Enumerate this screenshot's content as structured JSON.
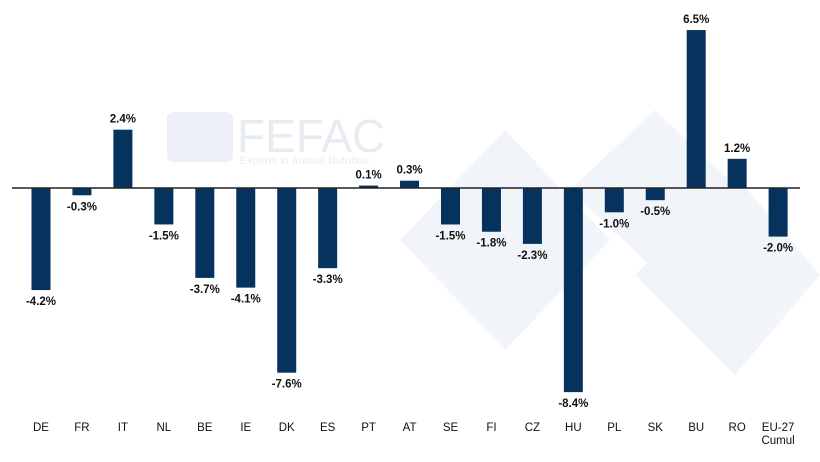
{
  "logo": {
    "name": "FEFAC",
    "tagline": "Experts in Animal Nutrition"
  },
  "chart_data": {
    "type": "bar",
    "categories": [
      "DE",
      "FR",
      "IT",
      "NL",
      "BE",
      "IE",
      "DK",
      "ES",
      "PT",
      "AT",
      "SE",
      "FI",
      "CZ",
      "HU",
      "PL",
      "SK",
      "BU",
      "RO",
      "EU-27 Cumul"
    ],
    "values": [
      -4.2,
      -0.3,
      2.4,
      -1.5,
      -3.7,
      -4.1,
      -7.6,
      -3.3,
      0.1,
      0.3,
      -1.5,
      -1.8,
      -2.3,
      -8.4,
      -1.0,
      -0.5,
      6.5,
      1.2,
      -2.0
    ],
    "data_labels": [
      "-4.2%",
      "-0.3%",
      "2.4%",
      "-1.5%",
      "-3.7%",
      "-4.1%",
      "-7.6%",
      "-3.3%",
      "0.1%",
      "0.3%",
      "-1.5%",
      "-1.8%",
      "-2.3%",
      "-8.4%",
      "-1.0%",
      "-0.5%",
      "6.5%",
      "1.2%",
      "-2.0%"
    ],
    "title": "",
    "xlabel": "",
    "ylabel": "",
    "ylim": [
      -9,
      7
    ],
    "grid": false,
    "legend": "none",
    "bar_color": "#06325e"
  }
}
